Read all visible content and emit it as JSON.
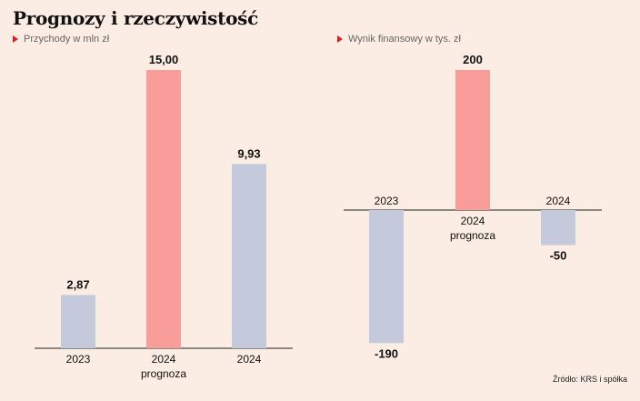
{
  "title": "Prognozy i rzeczywistość",
  "source": "Źródło: KRS i spółka",
  "colors": {
    "actual": "#c5c9dc",
    "forecast": "#f99d9a",
    "marker": "#d32020",
    "background": "#fbede4"
  },
  "chart_data": [
    {
      "type": "bar",
      "title": "Przychody w mln zł",
      "categories": [
        "2023",
        "2024\nprognoza",
        "2024"
      ],
      "values": [
        2.87,
        15.0,
        9.93
      ],
      "value_labels": [
        "2,87",
        "15,00",
        "9,93"
      ],
      "bar_kinds": [
        "actual",
        "forecast",
        "actual"
      ],
      "ylim": [
        0,
        15.0
      ]
    },
    {
      "type": "bar",
      "title": "Wynik finansowy w tys. zł",
      "categories": [
        "2023",
        "2024\nprognoza",
        "2024"
      ],
      "values": [
        -190,
        200,
        -50
      ],
      "value_labels": [
        "-190",
        "200",
        "-50"
      ],
      "bar_kinds": [
        "actual",
        "forecast",
        "actual"
      ],
      "ylim": [
        -190,
        200
      ]
    }
  ]
}
